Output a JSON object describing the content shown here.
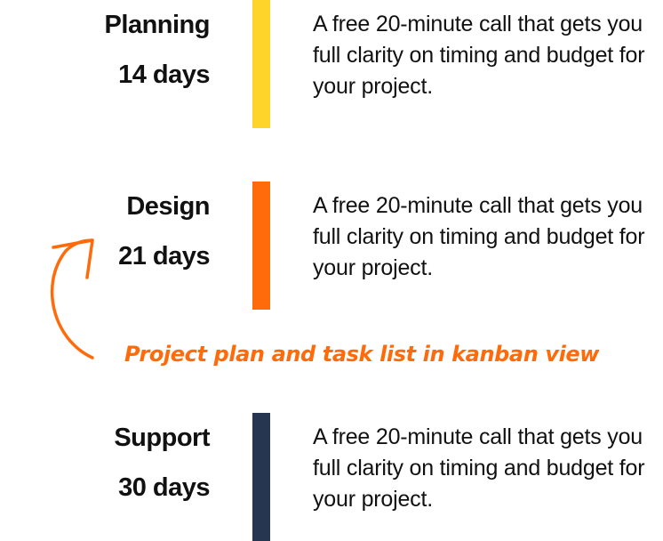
{
  "phases": [
    {
      "title": "Planning",
      "duration": "14 days",
      "description": "A free 20-minute call that gets you full clarity on timing and budget for your project.",
      "color": "#FFD42A"
    },
    {
      "title": "Design",
      "duration": "21 days",
      "description": "A free 20-minute call that gets you full clarity on timing and budget for your project.",
      "color": "#FF6B0A"
    },
    {
      "title": "Support",
      "duration": "30 days",
      "description": "A free 20-minute call that gets you full clarity on timing and budget for your project.",
      "color": "#263650"
    }
  ],
  "annotation": {
    "text": "Project plan and task list in kanban view",
    "color": "#FF6B0A",
    "icon": "curved-arrow-icon"
  }
}
